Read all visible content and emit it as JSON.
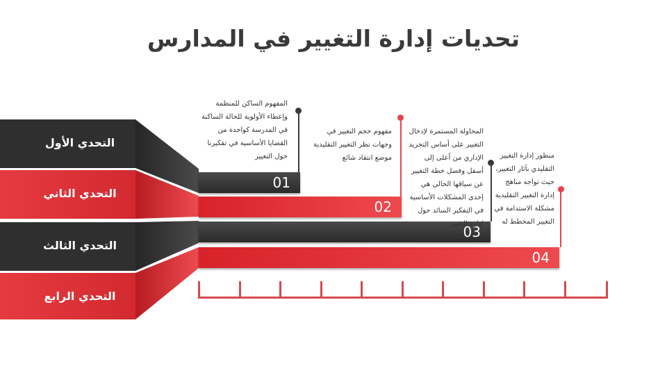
{
  "title": "تحديات إدارة التغيير في المدارس",
  "colors": {
    "dark": "#2f2f2f",
    "red": "#e8434a",
    "text": "#3a3a3a"
  },
  "challenges": [
    {
      "label": "التحدي الأول",
      "number": "01",
      "color": "dark",
      "description": "المفهوم الساكن للمنظمة وإعطاء الأولوية للحالة الساكنة في المدرسة كواحدة من القضايا الأساسية في تفكيرنا حول التغيير"
    },
    {
      "label": "التحدي الثاني",
      "number": "02",
      "color": "red",
      "description": "مفهوم حجم التغيير في وجهات نظر التغيير التقليدية موضع انتقاد شائع"
    },
    {
      "label": "التحدي الثالث",
      "number": "03",
      "color": "dark",
      "description": "المحاولة المستمرة لإدخال التغيير على أساس التجريد الإداري من أعلى إلى أسفل وفصل خطة التغيير عن سياقها الحالي هي إحدى المشكلات الأساسية في التفكير السائد حول إدارة التغيير"
    },
    {
      "label": "التحدي الرابع",
      "number": "04",
      "color": "red",
      "description": "منظور إدارة التغيير التقليدي بآثار التغيير، حيث تواجه مناهج إدارة التغيير التقليدية مشكلة الاستدامة في التغيير المخطط له"
    }
  ]
}
